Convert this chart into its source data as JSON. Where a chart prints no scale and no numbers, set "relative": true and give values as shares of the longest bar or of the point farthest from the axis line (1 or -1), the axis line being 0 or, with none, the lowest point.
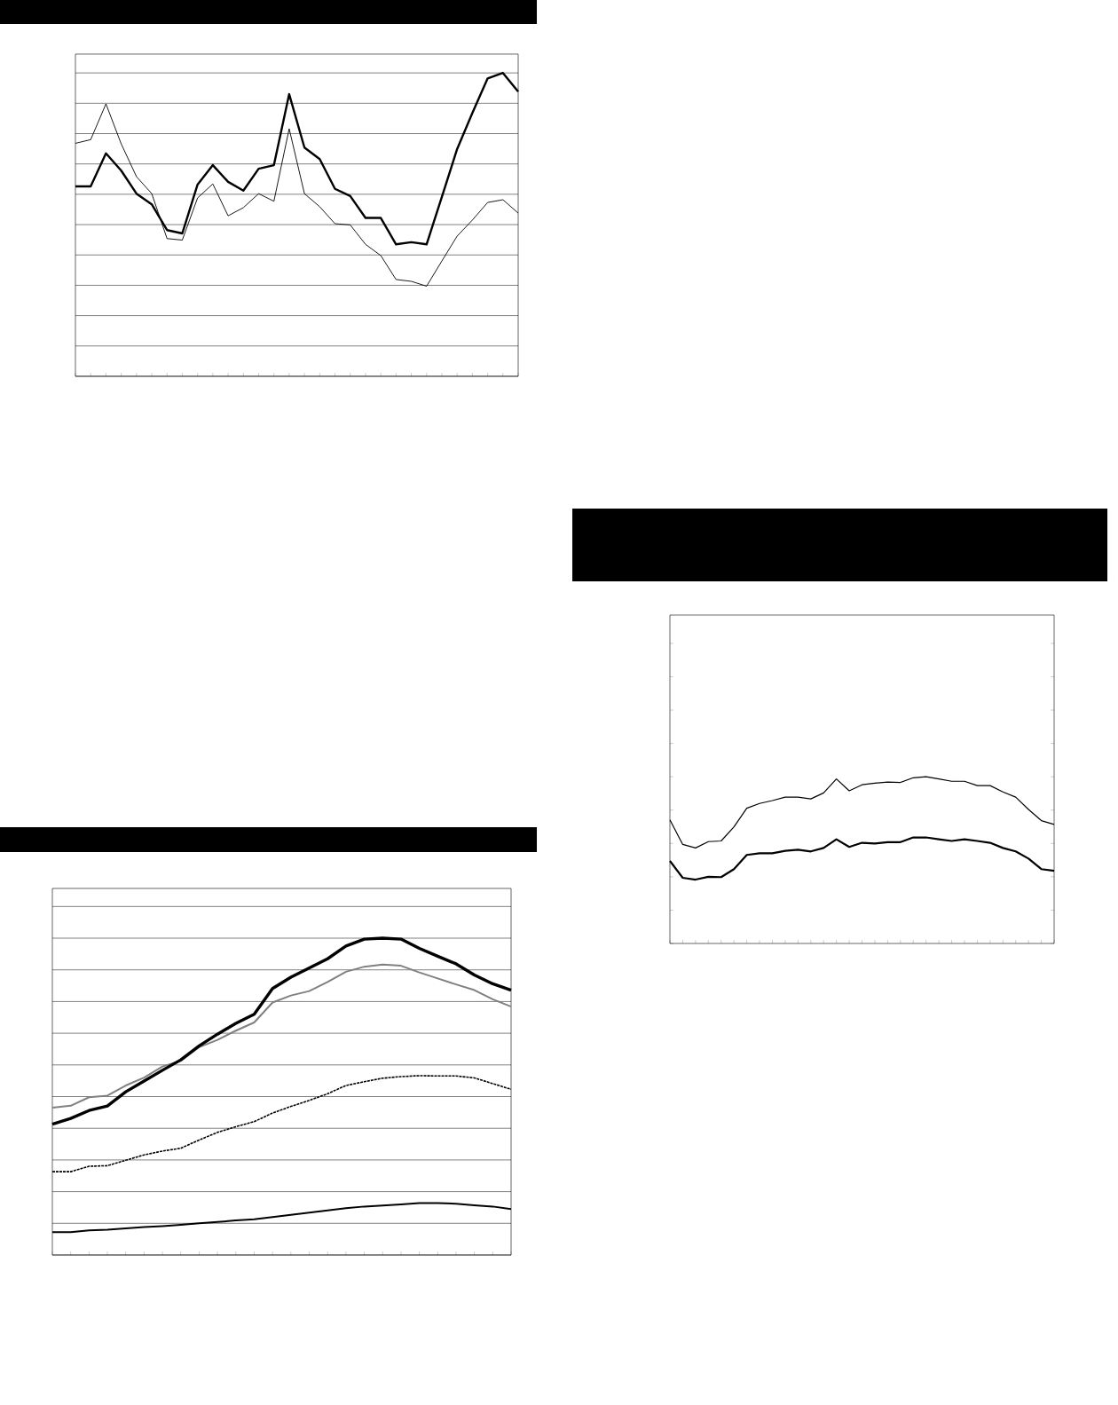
{
  "chart_data": [
    {
      "type": "line",
      "relative": true,
      "grid": "y",
      "marker": "none",
      "categories": [
        null,
        null,
        null,
        null,
        null,
        null,
        null,
        null,
        null,
        null,
        null,
        null,
        null,
        null,
        null,
        null,
        null,
        null,
        null,
        null,
        null,
        null,
        null,
        null,
        null,
        null,
        null,
        null,
        null,
        null
      ],
      "series": [
        {
          "color": "#000000",
          "line_style": "solid",
          "values": [
            0.768,
            0.78,
            0.898,
            0.766,
            0.658,
            0.602,
            0.454,
            0.449,
            0.588,
            0.634,
            0.529,
            0.556,
            0.602,
            0.577,
            0.816,
            0.602,
            0.559,
            0.503,
            0.499,
            0.435,
            0.398,
            0.319,
            0.313,
            0.297,
            0.38,
            0.462,
            0.515,
            0.573,
            0.582,
            0.538
          ]
        },
        {
          "color": "#000000",
          "line_style": "solid",
          "values": [
            0.626,
            0.626,
            0.735,
            0.678,
            0.602,
            0.567,
            0.482,
            0.471,
            0.632,
            0.696,
            0.641,
            0.612,
            0.684,
            0.696,
            0.93,
            0.754,
            0.716,
            0.618,
            0.594,
            0.522,
            0.522,
            0.435,
            0.442,
            0.435,
            0.591,
            0.749,
            0.868,
            0.982,
            1.0,
            0.938
          ]
        }
      ]
    },
    {
      "type": "line",
      "relative": true,
      "marker": "none",
      "categories": [
        null,
        null,
        null,
        null,
        null,
        null,
        null,
        null,
        null,
        null,
        null,
        null,
        null,
        null,
        null,
        null,
        null,
        null,
        null,
        null,
        null,
        null,
        null,
        null,
        null,
        null,
        null,
        null,
        null,
        null,
        null
      ],
      "series": [
        {
          "color": "#000000",
          "line_style": "solid",
          "values": [
            0.741,
            0.594,
            0.573,
            0.611,
            0.615,
            0.699,
            0.811,
            0.84,
            0.857,
            0.878,
            0.878,
            0.867,
            0.903,
            0.987,
            0.916,
            0.952,
            0.962,
            0.968,
            0.966,
            0.994,
            1.0,
            0.987,
            0.973,
            0.973,
            0.947,
            0.947,
            0.909,
            0.878,
            0.804,
            0.737,
            0.714
          ]
        },
        {
          "color": "#000000",
          "line_style": "solid",
          "values": [
            0.495,
            0.394,
            0.383,
            0.4,
            0.398,
            0.446,
            0.531,
            0.541,
            0.541,
            0.556,
            0.562,
            0.552,
            0.573,
            0.625,
            0.579,
            0.604,
            0.6,
            0.608,
            0.608,
            0.636,
            0.636,
            0.625,
            0.615,
            0.625,
            0.615,
            0.604,
            0.573,
            0.552,
            0.509,
            0.446,
            0.436
          ]
        }
      ]
    },
    {
      "type": "line",
      "relative": true,
      "grid": "y",
      "marker": "none",
      "categories": [
        null,
        null,
        null,
        null,
        null,
        null,
        null,
        null,
        null,
        null,
        null,
        null,
        null,
        null,
        null,
        null,
        null,
        null,
        null,
        null,
        null,
        null,
        null,
        null,
        null,
        null
      ],
      "series": [
        {
          "color": "#000000",
          "line_style": "solid",
          "values": [
            0.072,
            0.072,
            0.078,
            0.08,
            0.084,
            0.088,
            0.091,
            0.095,
            0.1,
            0.104,
            0.109,
            0.113,
            0.12,
            0.127,
            0.134,
            0.141,
            0.148,
            0.153,
            0.156,
            0.16,
            0.164,
            0.164,
            0.162,
            0.157,
            0.153,
            0.145
          ]
        },
        {
          "color": "#000000",
          "line_style": "dotted",
          "values": [
            0.263,
            0.263,
            0.28,
            0.282,
            0.299,
            0.316,
            0.328,
            0.337,
            0.363,
            0.387,
            0.405,
            0.421,
            0.448,
            0.469,
            0.488,
            0.509,
            0.535,
            0.547,
            0.558,
            0.563,
            0.566,
            0.565,
            0.565,
            0.559,
            0.541,
            0.523
          ]
        },
        {
          "color": "#808080",
          "line_style": "solid",
          "values": [
            0.465,
            0.471,
            0.498,
            0.503,
            0.535,
            0.56,
            0.595,
            0.613,
            0.656,
            0.679,
            0.708,
            0.734,
            0.797,
            0.819,
            0.833,
            0.862,
            0.894,
            0.91,
            0.917,
            0.913,
            0.892,
            0.873,
            0.854,
            0.836,
            0.807,
            0.784
          ]
        },
        {
          "color": "#000000",
          "line_style": "solid",
          "values": [
            0.413,
            0.431,
            0.456,
            0.47,
            0.515,
            0.549,
            0.583,
            0.616,
            0.66,
            0.697,
            0.731,
            0.76,
            0.841,
            0.877,
            0.906,
            0.935,
            0.975,
            0.997,
            1.0,
            0.997,
            0.968,
            0.943,
            0.919,
            0.884,
            0.856,
            0.836
          ]
        }
      ]
    }
  ]
}
